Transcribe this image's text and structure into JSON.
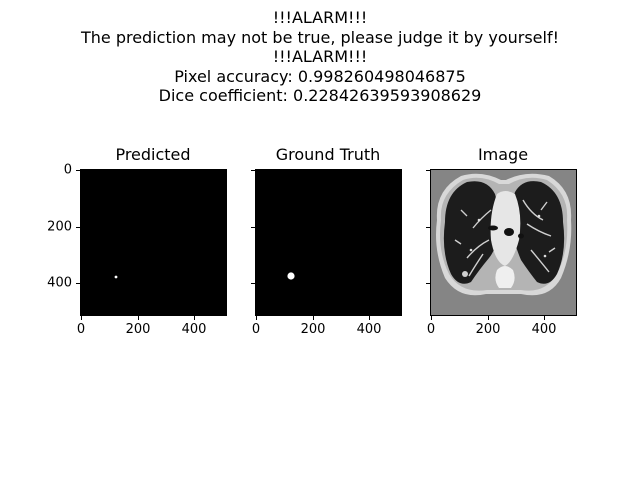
{
  "suptitle": {
    "line1": "!!!ALARM!!!",
    "line2": "The prediction may not be true, please judge it by yourself!",
    "line3": "!!!ALARM!!!",
    "line4": "Pixel accuracy: 0.998260498046875",
    "line5": "Dice coefficient: 0.22842639593908629"
  },
  "panels": [
    {
      "title": "Predicted"
    },
    {
      "title": "Ground Truth"
    },
    {
      "title": "Image"
    }
  ],
  "axes": {
    "xticks": [
      "0",
      "200",
      "400"
    ],
    "yticks": [
      "0",
      "200",
      "400"
    ]
  },
  "colors": {
    "mask_bg": "#000000",
    "mask_fg": "#ffffff",
    "ct_bg": "#858585"
  }
}
